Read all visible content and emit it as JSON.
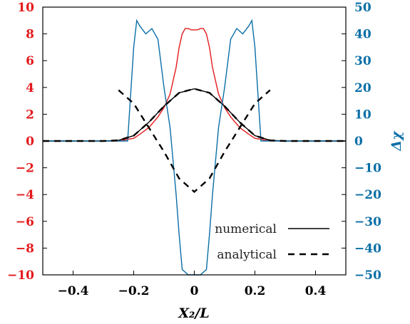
{
  "chart_data": {
    "type": "line",
    "title": "",
    "xlabel": "X₂/L",
    "ylabel_left": "",
    "ylabel_right": "Δχ",
    "xlim": [
      -0.5,
      0.5
    ],
    "ylim_left": [
      -10,
      10
    ],
    "ylim_right": [
      -50,
      50
    ],
    "x_ticks": [
      "−0.4",
      "−0.2",
      "0",
      "0.2",
      "0.4"
    ],
    "x_tick_values": [
      -0.4,
      -0.2,
      0,
      0.2,
      0.4
    ],
    "y_left_ticks": [
      "10",
      "8",
      "6",
      "4",
      "2",
      "0",
      "−2",
      "−4",
      "−6",
      "−8",
      "−10"
    ],
    "y_left_tick_values": [
      10,
      8,
      6,
      4,
      2,
      0,
      -2,
      -4,
      -6,
      -8,
      -10
    ],
    "y_right_ticks": [
      "50",
      "40",
      "30",
      "20",
      "10",
      "0",
      "−10",
      "−20",
      "−30",
      "−40",
      "−50"
    ],
    "y_right_tick_values": [
      50,
      40,
      30,
      20,
      10,
      0,
      -10,
      -20,
      -30,
      -40,
      -50
    ],
    "grid": false,
    "legend_position": "bottom-right",
    "legend": [
      {
        "label": "numerical",
        "style": "solid"
      },
      {
        "label": "analytical",
        "style": "dashed"
      }
    ],
    "colors": {
      "left_axis": "#e31a1c",
      "right_axis": "#0a6fa6",
      "numerical_left": "#e31a1c",
      "numerical_right": "#0a6fa6",
      "analytical": "#000000"
    },
    "series": [
      {
        "axis": "left",
        "style": "solid",
        "color": "#e31a1c",
        "x": [
          -0.5,
          -0.25,
          -0.2,
          -0.18,
          -0.15,
          -0.12,
          -0.1,
          -0.08,
          -0.06,
          -0.05,
          -0.04,
          -0.03,
          -0.02,
          -0.01,
          0,
          0.01,
          0.02,
          0.03,
          0.04,
          0.05,
          0.06,
          0.08,
          0.1,
          0.12,
          0.15,
          0.18,
          0.2,
          0.25,
          0.5
        ],
        "y": [
          0,
          0,
          0.2,
          0.5,
          1.0,
          1.8,
          2.5,
          3.5,
          5.5,
          7.0,
          8.0,
          8.4,
          8.4,
          8.3,
          8.3,
          8.3,
          8.4,
          8.4,
          8.0,
          7.0,
          5.5,
          3.5,
          2.5,
          1.8,
          1.0,
          0.5,
          0.2,
          0,
          0
        ]
      },
      {
        "axis": "left",
        "style": "solid",
        "color": "#000000",
        "x": [
          -0.5,
          -0.3,
          -0.25,
          -0.2,
          -0.15,
          -0.1,
          -0.05,
          0,
          0.05,
          0.1,
          0.15,
          0.2,
          0.25,
          0.3,
          0.5
        ],
        "y": [
          0,
          0,
          0.05,
          0.4,
          1.4,
          2.6,
          3.6,
          3.9,
          3.6,
          2.6,
          1.4,
          0.4,
          0.05,
          0,
          0
        ]
      },
      {
        "axis": "right",
        "style": "solid",
        "color": "#0a6fa6",
        "x": [
          -0.5,
          -0.22,
          -0.2,
          -0.19,
          -0.18,
          -0.16,
          -0.14,
          -0.12,
          -0.1,
          -0.08,
          -0.06,
          -0.05,
          -0.04,
          -0.02,
          0,
          0.02,
          0.04,
          0.05,
          0.06,
          0.08,
          0.1,
          0.12,
          0.14,
          0.16,
          0.18,
          0.19,
          0.2,
          0.22,
          0.5
        ],
        "y": [
          0,
          0,
          35,
          45,
          43,
          40,
          42,
          38,
          20,
          5,
          -20,
          -35,
          -48,
          -50,
          -50,
          -50,
          -48,
          -35,
          -20,
          5,
          20,
          38,
          42,
          40,
          43,
          45,
          35,
          0,
          0
        ]
      },
      {
        "axis": "right",
        "style": "dashed",
        "color": "#000000",
        "x": [
          -0.25,
          -0.2,
          -0.15,
          -0.1,
          -0.05,
          0,
          0.05,
          0.1,
          0.15,
          0.2,
          0.25
        ],
        "y": [
          19,
          14,
          5,
          -4,
          -14,
          -19,
          -14,
          -4,
          5,
          14,
          19
        ]
      },
      {
        "axis": "left",
        "style": "dashed",
        "color": "#000000",
        "x": [
          -0.5,
          -0.3,
          -0.25,
          -0.2,
          -0.15,
          -0.1,
          -0.05,
          0,
          0.05,
          0.1,
          0.15,
          0.2,
          0.25,
          0.3,
          0.5
        ],
        "y": [
          0,
          0,
          0.05,
          0.4,
          1.4,
          2.6,
          3.6,
          3.9,
          3.6,
          2.6,
          1.4,
          0.4,
          0.05,
          0,
          0
        ]
      }
    ]
  }
}
